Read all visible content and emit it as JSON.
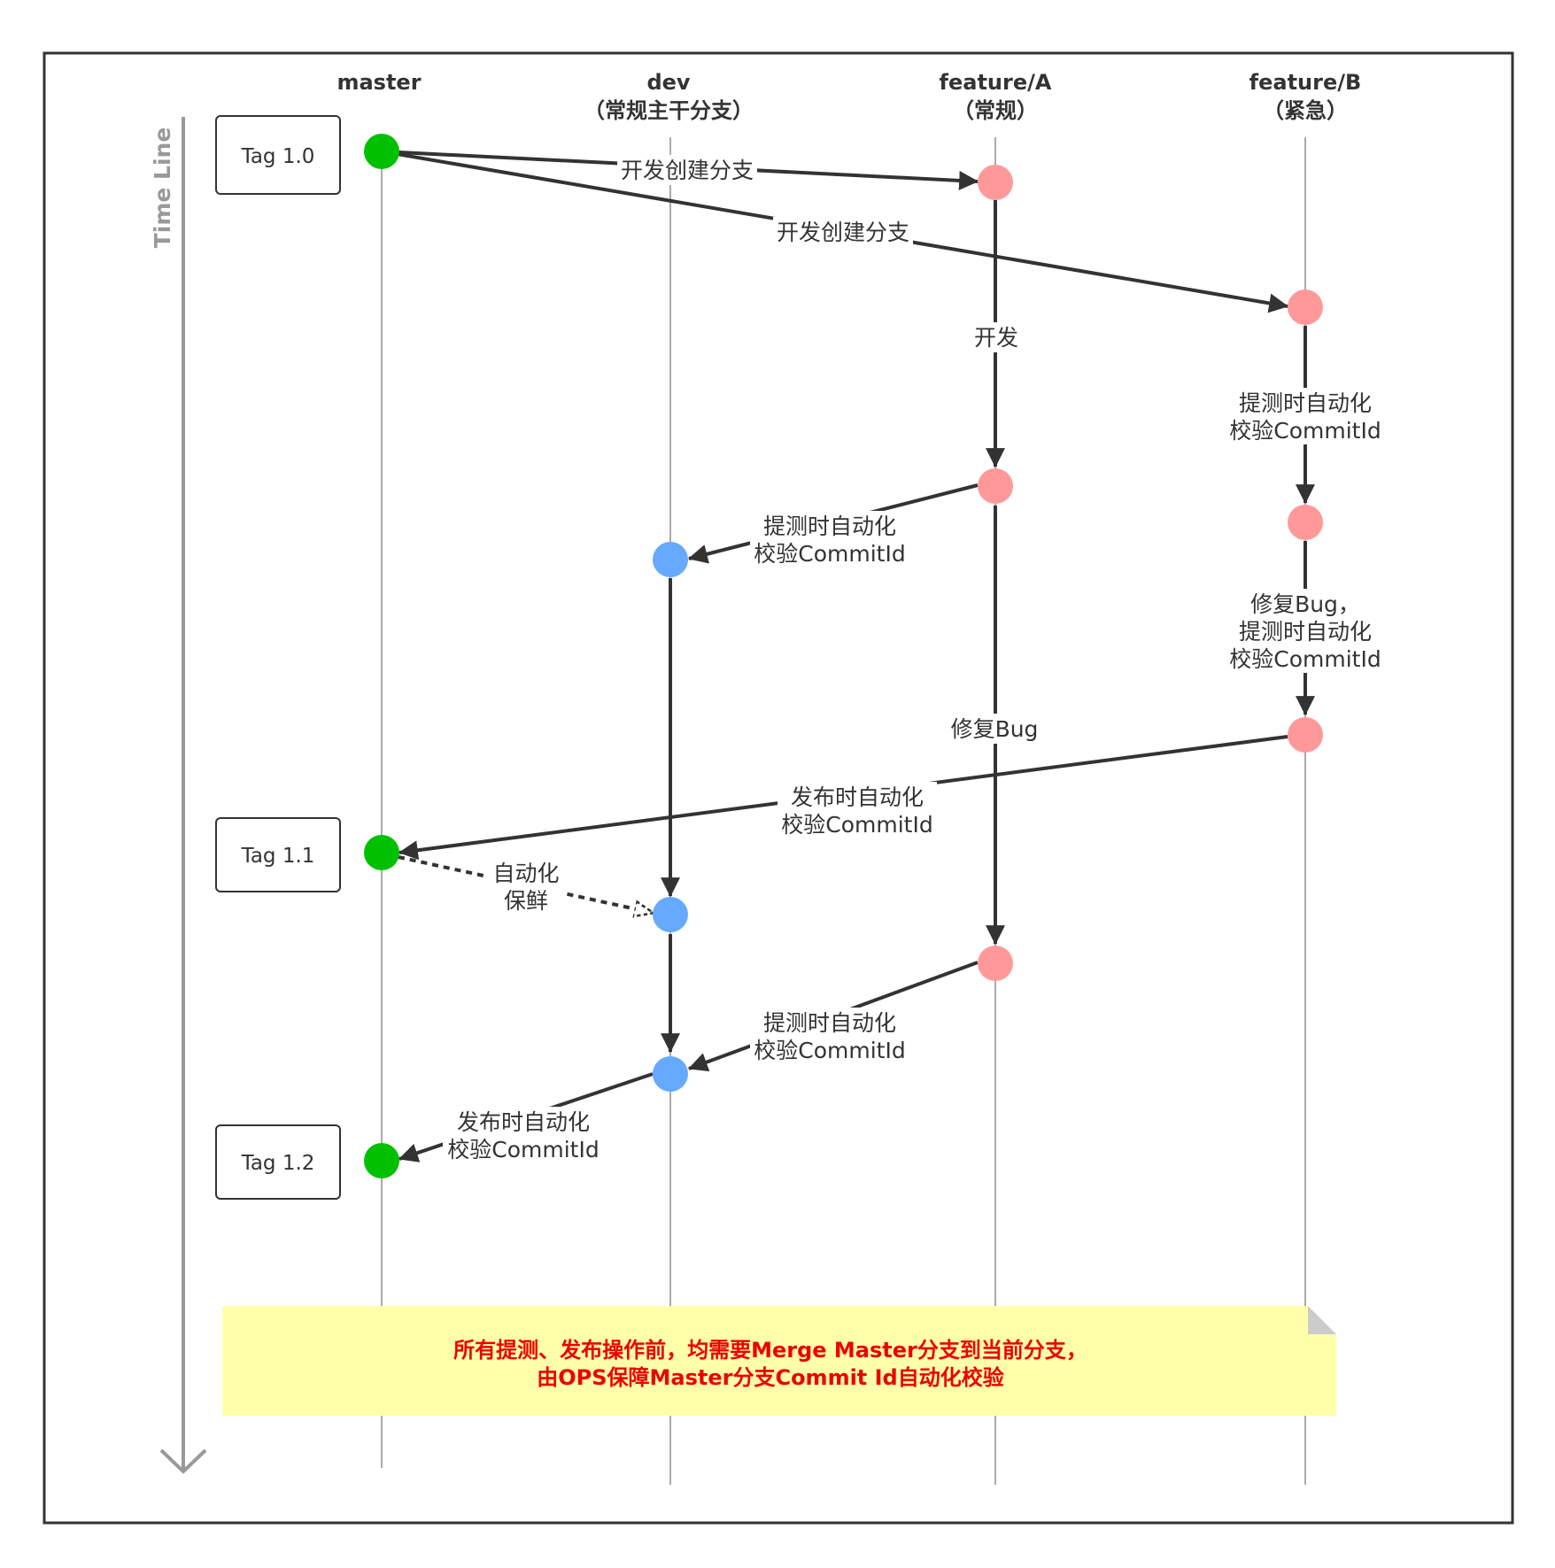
{
  "lanes": [
    {
      "id": "master",
      "name": "master",
      "sub": ""
    },
    {
      "id": "dev",
      "name": "dev",
      "sub": "（常规主干分支）"
    },
    {
      "id": "featureA",
      "name": "feature/A",
      "sub": "（常规）"
    },
    {
      "id": "featureB",
      "name": "feature/B",
      "sub": "（紧急）"
    }
  ],
  "timeline_label": "Time Line",
  "tags": [
    {
      "label": "Tag 1.0"
    },
    {
      "label": "Tag 1.1"
    },
    {
      "label": "Tag 1.2"
    }
  ],
  "edge_labels": {
    "create_branch_a": "开发创建分支",
    "create_branch_b": "开发创建分支",
    "develop": "开发",
    "b_submit_line1": "提测时自动化",
    "b_submit_line2": "校验CommitId",
    "a_submit_line1": "提测时自动化",
    "a_submit_line2": "校验CommitId",
    "a_fix_bug": "修复Bug",
    "b_fix_line1": "修复Bug，",
    "b_fix_line2": "提测时自动化",
    "b_fix_line3": "校验CommitId",
    "b_release_line1": "发布时自动化",
    "b_release_line2": "校验CommitId",
    "keepfresh_line1": "自动化",
    "keepfresh_line2": "保鲜",
    "a_submit2_line1": "提测时自动化",
    "a_submit2_line2": "校验CommitId",
    "dev_release_line1": "发布时自动化",
    "dev_release_line2": "校验CommitId"
  },
  "note": {
    "line1": "所有提测、发布操作前，均需要Merge Master分支到当前分支，",
    "line2": "由OPS保障Master分支Commit Id自动化校验"
  },
  "colors": {
    "master_node": "#00c000",
    "dev_node": "#66aaff",
    "feature_node": "#ff9999",
    "arrow": "#333333",
    "note_bg": "#ffffaa",
    "note_text": "#ee0000",
    "timeline": "#999999"
  }
}
